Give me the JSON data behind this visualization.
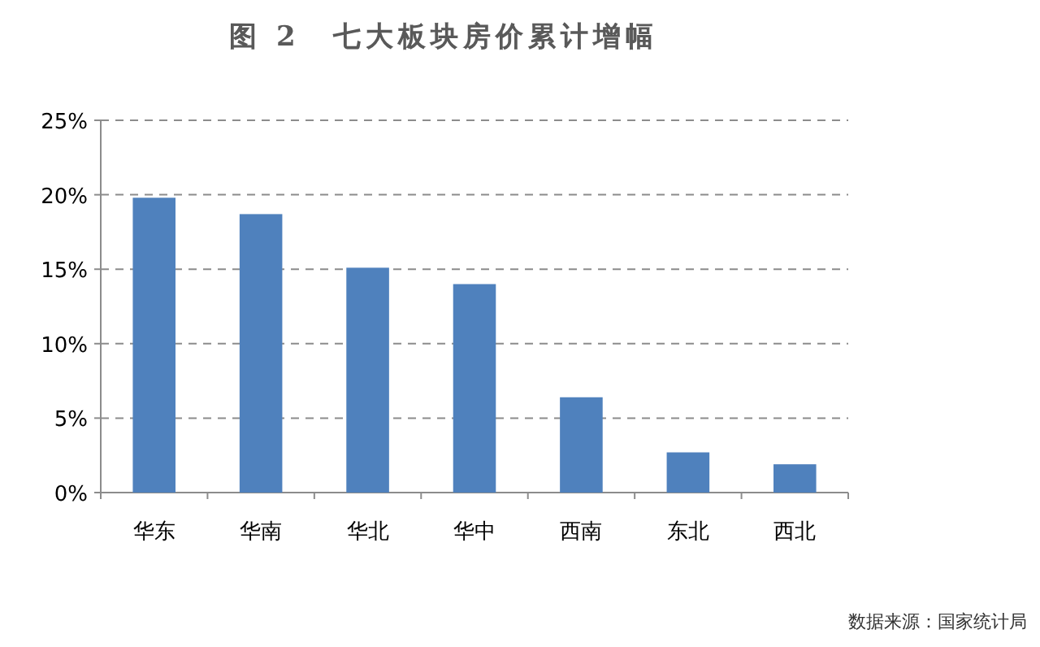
{
  "chart_data": {
    "type": "bar",
    "title": "图 2　七大板块房价累计增幅",
    "categories": [
      "华东",
      "华南",
      "华北",
      "华中",
      "西南",
      "东北",
      "西北"
    ],
    "values": [
      19.8,
      18.7,
      15.1,
      14.0,
      6.4,
      2.7,
      1.9
    ],
    "color": "#4f81bd",
    "ylim": [
      0,
      25
    ],
    "yticks": [
      {
        "value": 0,
        "label": "0%"
      },
      {
        "value": 5,
        "label": "5%"
      },
      {
        "value": 10,
        "label": "10%"
      },
      {
        "value": 15,
        "label": "15%"
      },
      {
        "value": 20,
        "label": "20%"
      },
      {
        "value": 25,
        "label": "25%"
      }
    ],
    "grid": "y",
    "annotations": [
      "数据来源：国家统计局"
    ]
  }
}
